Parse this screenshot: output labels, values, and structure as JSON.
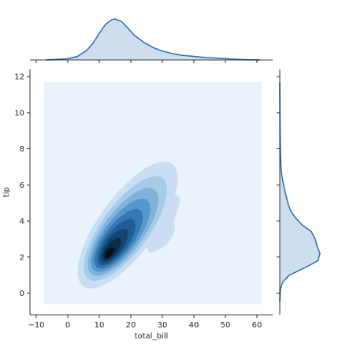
{
  "chart_data": {
    "type": "kde-joint",
    "xlabel": "total_bill",
    "ylabel": "tip",
    "xlim": [
      -12,
      65
    ],
    "ylim": [
      -1.2,
      12.4
    ],
    "xticks": [
      -10,
      0,
      10,
      20,
      30,
      40,
      50,
      60
    ],
    "yticks": [
      0,
      2,
      4,
      6,
      8,
      10,
      12
    ],
    "grid": false,
    "colors": {
      "marginal_line": "#2a6ead",
      "marginal_fill": "#c5d8ea",
      "background_fill": "#eaf2fb",
      "contour_levels": [
        "#c9def2",
        "#a6cbe9",
        "#7fb3dd",
        "#5598cc",
        "#3478b6",
        "#205d94",
        "#144472",
        "#0a2b4a",
        "#02101d"
      ]
    },
    "joint_kde": {
      "bandwidth_note": "",
      "peak": {
        "total_bill": 13,
        "tip": 2.2
      },
      "support_x": [
        -7.5,
        61.5
      ],
      "support_y": [
        -0.6,
        11.7
      ]
    },
    "marginal_x": {
      "variable": "total_bill",
      "points": [
        [
          -7,
          0.0
        ],
        [
          0,
          0.002
        ],
        [
          3,
          0.006
        ],
        [
          6,
          0.016
        ],
        [
          8,
          0.028
        ],
        [
          10,
          0.045
        ],
        [
          12,
          0.06
        ],
        [
          14,
          0.068
        ],
        [
          15,
          0.069
        ],
        [
          17,
          0.065
        ],
        [
          19,
          0.054
        ],
        [
          21,
          0.042
        ],
        [
          24,
          0.03
        ],
        [
          27,
          0.021
        ],
        [
          30,
          0.015
        ],
        [
          33,
          0.011
        ],
        [
          36,
          0.008
        ],
        [
          40,
          0.006
        ],
        [
          44,
          0.004
        ],
        [
          48,
          0.003
        ],
        [
          52,
          0.0015
        ],
        [
          56,
          0.0005
        ],
        [
          61,
          0.0
        ]
      ]
    },
    "marginal_y": {
      "variable": "tip",
      "points": [
        [
          -0.5,
          0.0
        ],
        [
          0.2,
          0.006
        ],
        [
          0.6,
          0.03
        ],
        [
          1.0,
          0.1
        ],
        [
          1.4,
          0.26
        ],
        [
          1.8,
          0.4
        ],
        [
          2.2,
          0.42
        ],
        [
          2.6,
          0.39
        ],
        [
          3.0,
          0.37
        ],
        [
          3.4,
          0.33
        ],
        [
          3.8,
          0.23
        ],
        [
          4.2,
          0.16
        ],
        [
          4.6,
          0.11
        ],
        [
          5.0,
          0.085
        ],
        [
          5.5,
          0.06
        ],
        [
          6.0,
          0.04
        ],
        [
          6.5,
          0.022
        ],
        [
          7.0,
          0.012
        ],
        [
          8.0,
          0.006
        ],
        [
          9.0,
          0.003
        ],
        [
          10.0,
          0.0015
        ],
        [
          11.0,
          0.0005
        ],
        [
          11.7,
          0.0
        ]
      ]
    }
  }
}
